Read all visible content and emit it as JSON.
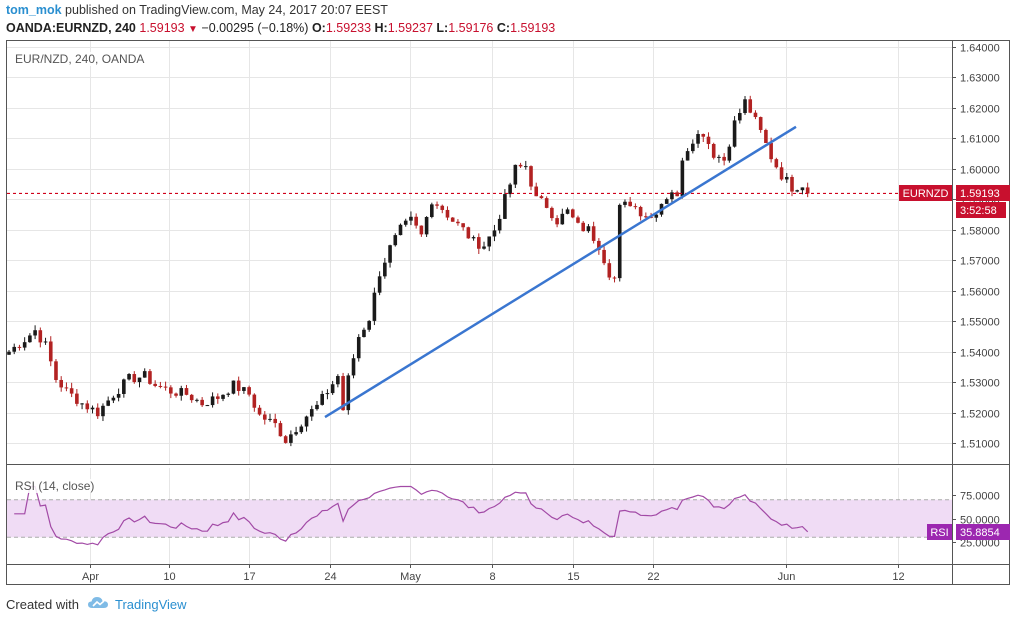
{
  "header": {
    "user": "tom_mok",
    "published_text": " published on TradingView.com, May 24, 2017 20:07 EEST",
    "symbol": "OANDA:EURNZD, 240",
    "last": "1.59193",
    "change": "−0.00295 (−0.18%)",
    "o_label": "O:",
    "o_value": "1.59233",
    "h_label": "H:",
    "h_value": "1.59237",
    "l_label": "L:",
    "l_value": "1.59176",
    "c_label": "C:",
    "c_value": "1.59193"
  },
  "main_pane": {
    "title": "EUR/NZD, 240, OANDA"
  },
  "rsi_pane": {
    "title": "RSI (14, close)"
  },
  "price_tag": {
    "symbol": "EURNZD",
    "value": "1.59193",
    "countdown": "3:52:58"
  },
  "rsi_tag": {
    "label": "RSI",
    "value": "35.8854"
  },
  "footer": {
    "created_with": "Created with",
    "brand": "TradingView"
  },
  "colors": {
    "up": "#1a1a1a",
    "down": "#b22222",
    "trendline": "#3a76d0",
    "price_line": "#d0021b",
    "rsi_line": "#a24aa6",
    "rsi_band": "#f0dcf5",
    "tag_price": "#c8102e",
    "tag_rsi": "#9c27b0"
  },
  "chart_data": [
    {
      "type": "candlestick",
      "x_axis_labels": [
        "Apr",
        "10",
        "17",
        "24",
        "May",
        "8",
        "15",
        "22",
        "Jun",
        "12"
      ],
      "y_tick_labels": [
        "1.64000",
        "1.63000",
        "1.62000",
        "1.61000",
        "1.60000",
        "1.59000",
        "1.58000",
        "1.57000",
        "1.56000",
        "1.55000",
        "1.54000",
        "1.53000",
        "1.52000",
        "1.51000"
      ],
      "ylim": [
        1.5,
        1.6435
      ],
      "price_line": 1.59193,
      "path_points": [
        [
          0,
          1.54
        ],
        [
          3,
          1.544
        ],
        [
          5,
          1.547
        ],
        [
          7,
          1.542
        ],
        [
          9,
          1.531
        ],
        [
          11,
          1.527
        ],
        [
          14,
          1.523
        ],
        [
          17,
          1.52
        ],
        [
          20,
          1.526
        ],
        [
          23,
          1.531
        ],
        [
          26,
          1.532
        ],
        [
          28,
          1.529
        ],
        [
          31,
          1.527
        ],
        [
          34,
          1.526
        ],
        [
          37,
          1.523
        ],
        [
          40,
          1.525
        ],
        [
          43,
          1.529
        ],
        [
          46,
          1.526
        ],
        [
          48,
          1.519
        ],
        [
          51,
          1.516
        ],
        [
          53,
          1.511
        ],
        [
          55,
          1.515
        ],
        [
          57,
          1.519
        ],
        [
          59,
          1.522
        ],
        [
          61,
          1.527
        ],
        [
          63,
          1.532
        ],
        [
          64,
          1.521
        ],
        [
          65,
          1.531
        ],
        [
          67,
          1.545
        ],
        [
          69,
          1.551
        ],
        [
          71,
          1.566
        ],
        [
          73,
          1.574
        ],
        [
          75,
          1.58
        ],
        [
          77,
          1.583
        ],
        [
          79,
          1.578
        ],
        [
          81,
          1.59
        ],
        [
          83,
          1.587
        ],
        [
          85,
          1.583
        ],
        [
          87,
          1.58
        ],
        [
          89,
          1.576
        ],
        [
          91,
          1.575
        ],
        [
          93,
          1.58
        ],
        [
          95,
          1.59
        ],
        [
          97,
          1.6
        ],
        [
          99,
          1.601
        ],
        [
          101,
          1.59
        ],
        [
          103,
          1.588
        ],
        [
          105,
          1.583
        ],
        [
          107,
          1.586
        ],
        [
          109,
          1.581
        ],
        [
          111,
          1.58
        ],
        [
          113,
          1.575
        ],
        [
          115,
          1.566
        ],
        [
          116,
          1.564
        ],
        [
          117,
          1.587
        ],
        [
          119,
          1.589
        ],
        [
          121,
          1.586
        ],
        [
          123,
          1.584
        ],
        [
          125,
          1.589
        ],
        [
          127,
          1.593
        ],
        [
          128,
          1.59
        ],
        [
          129,
          1.604
        ],
        [
          131,
          1.61
        ],
        [
          133,
          1.612
        ],
        [
          135,
          1.605
        ],
        [
          137,
          1.603
        ],
        [
          139,
          1.615
        ],
        [
          141,
          1.622
        ],
        [
          142,
          1.619
        ],
        [
          144,
          1.612
        ],
        [
          146,
          1.604
        ],
        [
          148,
          1.598
        ],
        [
          150,
          1.594
        ],
        [
          152,
          1.595
        ],
        [
          153,
          1.5919
        ]
      ],
      "trendline": [
        [
          1.5185,
          69
        ],
        [
          1.6138,
          172
        ]
      ]
    },
    {
      "type": "line",
      "name": "RSI (14, close)",
      "y_tick_labels": [
        "75.0000",
        "50.0000",
        "25.0000"
      ],
      "ylim": [
        22,
        84
      ],
      "band": [
        30,
        70
      ],
      "last": 35.8854
    }
  ]
}
